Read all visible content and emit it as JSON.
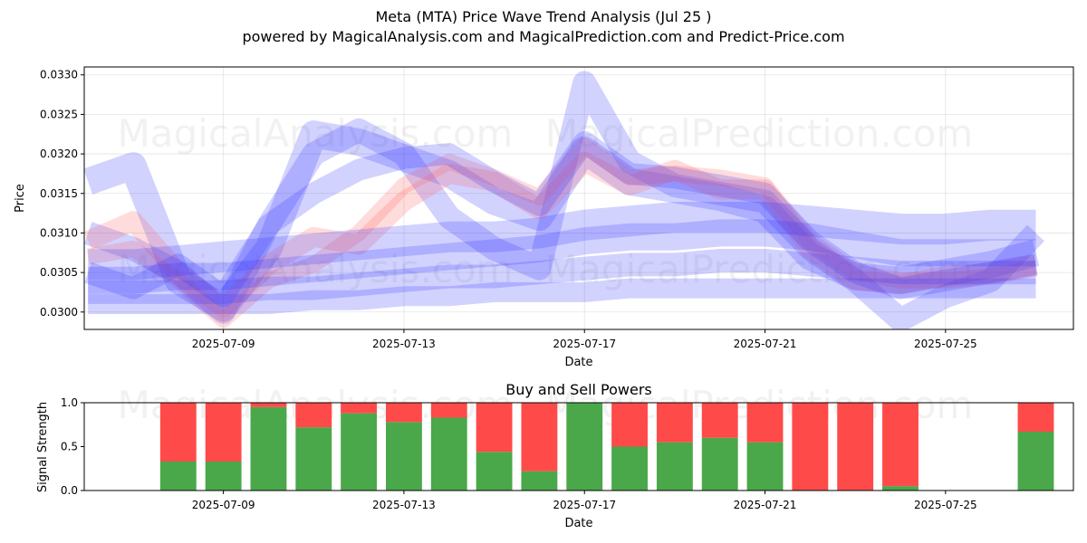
{
  "title_line1": "Meta (MTA) Price Wave Trend Analysis (Jul 25 )",
  "title_line2": "powered by MagicalAnalysis.com and MagicalPrediction.com and Predict-Price.com",
  "watermarks": [
    "MagicalAnalysis.com",
    "MagicalPrediction.com"
  ],
  "colors": {
    "buy": "#4aa84a",
    "sell": "#ff4a4a",
    "wave_blue": "#3030ff",
    "wave_red": "#ff6060"
  },
  "chart_data": [
    {
      "type": "line",
      "title": "",
      "xlabel": "Date",
      "ylabel": "Price",
      "x_ticks": [
        "2025-07-09",
        "2025-07-13",
        "2025-07-17",
        "2025-07-21",
        "2025-07-25"
      ],
      "y_ticks": [
        "0.0300",
        "0.0305",
        "0.0310",
        "0.0315",
        "0.0320",
        "0.0325",
        "0.0330"
      ],
      "ylim": [
        0.02978,
        0.0331
      ],
      "xlim": [
        "2025-07-05T22:00",
        "2025-07-27T20:00"
      ],
      "grid": true,
      "x": [
        "2025-07-06",
        "2025-07-07",
        "2025-07-08",
        "2025-07-09",
        "2025-07-10",
        "2025-07-11",
        "2025-07-12",
        "2025-07-13",
        "2025-07-14",
        "2025-07-15",
        "2025-07-16",
        "2025-07-17",
        "2025-07-18",
        "2025-07-19",
        "2025-07-20",
        "2025-07-21",
        "2025-07-22",
        "2025-07-23",
        "2025-07-24",
        "2025-07-25",
        "2025-07-26",
        "2025-07-27"
      ],
      "series": [
        {
          "color": "blue",
          "values": [
            0.03165,
            0.03185,
            0.0304,
            0.03005,
            0.0308,
            0.03225,
            0.03215,
            0.03195,
            0.03175,
            0.0314,
            0.0312,
            0.03205,
            0.03165,
            0.03155,
            0.03145,
            0.0313,
            0.0307,
            0.03045,
            0.0304,
            0.0305,
            0.0306,
            0.03075
          ]
        },
        {
          "color": "blue",
          "values": [
            0.031,
            0.0308,
            0.0305,
            0.03,
            0.0311,
            0.032,
            0.0323,
            0.032,
            0.0312,
            0.0308,
            0.03055,
            0.0329,
            0.0319,
            0.0316,
            0.0315,
            0.0314,
            0.0308,
            0.0304,
            0.0299,
            0.0302,
            0.0304,
            0.031
          ]
        },
        {
          "color": "red",
          "values": [
            0.0309,
            0.03115,
            0.0305,
            0.03005,
            0.0306,
            0.03095,
            0.03085,
            0.0314,
            0.03175,
            0.03165,
            0.0313,
            0.0319,
            0.0316,
            0.0318,
            0.03155,
            0.03155,
            0.0308,
            0.0304,
            0.03035,
            0.03045,
            0.0305,
            0.0306
          ]
        },
        {
          "color": "red",
          "values": [
            0.0307,
            0.0308,
            0.0304,
            0.0299,
            0.0304,
            0.0306,
            0.031,
            0.0316,
            0.0319,
            0.0317,
            0.03145,
            0.0321,
            0.0317,
            0.03175,
            0.0317,
            0.0316,
            0.0309,
            0.0305,
            0.0304,
            0.0304,
            0.03045,
            0.03055
          ]
        },
        {
          "color": "blue",
          "values": [
            0.0305,
            0.0303,
            0.0306,
            0.0302,
            0.0311,
            0.0315,
            0.0318,
            0.03195,
            0.032,
            0.03165,
            0.03135,
            0.03215,
            0.03175,
            0.0317,
            0.0316,
            0.0315,
            0.0309,
            0.0305,
            0.0303,
            0.0304,
            0.0305,
            0.0306
          ]
        },
        {
          "color": "blue",
          "values": [
            0.0306,
            0.0306,
            0.03065,
            0.0307,
            0.03075,
            0.0308,
            0.03085,
            0.0309,
            0.03095,
            0.03095,
            0.031,
            0.0311,
            0.03115,
            0.0312,
            0.0312,
            0.0312,
            0.03115,
            0.0311,
            0.03105,
            0.03105,
            0.0311,
            0.0311
          ]
        },
        {
          "color": "blue",
          "values": [
            0.0304,
            0.0304,
            0.03045,
            0.03045,
            0.0305,
            0.03055,
            0.0306,
            0.03065,
            0.0307,
            0.03075,
            0.0308,
            0.0309,
            0.03095,
            0.03095,
            0.031,
            0.031,
            0.03095,
            0.03085,
            0.03075,
            0.03075,
            0.03075,
            0.03075
          ]
        },
        {
          "color": "blue",
          "values": [
            0.03025,
            0.03025,
            0.03025,
            0.03025,
            0.0303,
            0.0303,
            0.03035,
            0.0304,
            0.03045,
            0.03045,
            0.0305,
            0.03055,
            0.0306,
            0.0306,
            0.03065,
            0.03065,
            0.0306,
            0.03055,
            0.0305,
            0.0305,
            0.0305,
            0.0305
          ]
        },
        {
          "color": "blue",
          "values": [
            0.0301,
            0.0301,
            0.0301,
            0.0301,
            0.0301,
            0.03015,
            0.03015,
            0.0302,
            0.0302,
            0.03025,
            0.03025,
            0.03025,
            0.0303,
            0.0303,
            0.0303,
            0.0303,
            0.0303,
            0.0303,
            0.0303,
            0.0303,
            0.0303,
            0.0303
          ]
        }
      ]
    },
    {
      "type": "bar",
      "title": "Buy and Sell Powers",
      "xlabel": "Date",
      "ylabel": "Signal Strength",
      "x_ticks": [
        "2025-07-09",
        "2025-07-13",
        "2025-07-17",
        "2025-07-21",
        "2025-07-25"
      ],
      "y_ticks": [
        "0.0",
        "0.5",
        "1.0"
      ],
      "ylim": [
        0,
        1
      ],
      "categories": [
        "2025-07-08",
        "2025-07-09",
        "2025-07-10",
        "2025-07-11",
        "2025-07-12",
        "2025-07-13",
        "2025-07-14",
        "2025-07-15",
        "2025-07-16",
        "2025-07-17",
        "2025-07-18",
        "2025-07-19",
        "2025-07-20",
        "2025-07-21",
        "2025-07-22",
        "2025-07-23",
        "2025-07-24",
        "2025-07-27"
      ],
      "series": [
        {
          "name": "buy",
          "values": [
            0.33,
            0.33,
            0.95,
            0.72,
            0.88,
            0.78,
            0.83,
            0.44,
            0.22,
            1.0,
            0.5,
            0.55,
            0.6,
            0.55,
            0.0,
            0.0,
            0.05,
            0.67
          ]
        },
        {
          "name": "sell",
          "values": [
            0.67,
            0.67,
            0.05,
            0.28,
            0.12,
            0.22,
            0.17,
            0.56,
            0.78,
            0.0,
            0.5,
            0.45,
            0.4,
            0.45,
            1.0,
            1.0,
            0.95,
            0.33
          ]
        }
      ]
    }
  ]
}
